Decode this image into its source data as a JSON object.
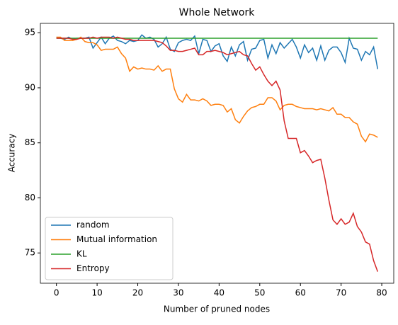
{
  "chart_data": {
    "type": "line",
    "title": "Whole Network",
    "xlabel": "Number of pruned nodes",
    "ylabel": "Accuracy",
    "x": [
      0,
      1,
      2,
      3,
      4,
      5,
      6,
      7,
      8,
      9,
      10,
      11,
      12,
      13,
      14,
      15,
      16,
      17,
      18,
      19,
      20,
      21,
      22,
      23,
      24,
      25,
      26,
      27,
      28,
      29,
      30,
      31,
      32,
      33,
      34,
      35,
      36,
      37,
      38,
      39,
      40,
      41,
      42,
      43,
      44,
      45,
      46,
      47,
      48,
      49,
      50,
      51,
      52,
      53,
      54,
      55,
      56,
      57,
      58,
      59,
      60,
      61,
      62,
      63,
      64,
      65,
      66,
      67,
      68,
      69,
      70,
      71,
      72,
      73,
      74,
      75,
      76,
      77,
      78,
      79
    ],
    "series": [
      {
        "name": "random",
        "color": "#1f77b4",
        "values": [
          94.6,
          94.5,
          94.4,
          94.6,
          94.4,
          94.5,
          94.5,
          94.5,
          94.6,
          93.6,
          94.1,
          94.6,
          94.0,
          94.5,
          94.7,
          94.3,
          94.2,
          94.0,
          94.3,
          94.2,
          94.3,
          94.8,
          94.5,
          94.6,
          94.4,
          93.7,
          94.0,
          94.6,
          93.5,
          93.3,
          94.1,
          94.3,
          94.4,
          94.3,
          94.7,
          93.1,
          94.4,
          94.3,
          93.3,
          93.8,
          94.0,
          92.9,
          92.4,
          93.7,
          92.9,
          93.9,
          94.2,
          92.5,
          93.5,
          93.6,
          94.3,
          94.4,
          92.7,
          93.9,
          93.1,
          94.1,
          93.6,
          94.0,
          94.4,
          93.7,
          92.7,
          93.9,
          93.2,
          93.6,
          92.5,
          93.8,
          92.5,
          93.4,
          93.7,
          93.7,
          93.2,
          92.3,
          94.5,
          93.6,
          93.5,
          92.5,
          93.3,
          93.0,
          93.7,
          91.7
        ]
      },
      {
        "name": "Mutual information",
        "color": "#ff7f0e",
        "values": [
          94.6,
          94.6,
          94.3,
          94.3,
          94.3,
          94.4,
          94.6,
          94.2,
          94.1,
          94.1,
          93.9,
          93.4,
          93.5,
          93.5,
          93.5,
          93.7,
          93.1,
          92.7,
          91.5,
          91.9,
          91.7,
          91.8,
          91.7,
          91.7,
          91.6,
          92.0,
          91.5,
          91.7,
          91.7,
          89.9,
          89.0,
          88.7,
          89.4,
          88.9,
          88.9,
          88.8,
          89.0,
          88.8,
          88.4,
          88.5,
          88.5,
          88.4,
          87.8,
          88.1,
          87.1,
          86.8,
          87.4,
          87.9,
          88.2,
          88.3,
          88.5,
          88.5,
          89.1,
          89.1,
          88.8,
          88.0,
          88.4,
          88.5,
          88.5,
          88.3,
          88.2,
          88.1,
          88.1,
          88.1,
          88.0,
          88.1,
          88.0,
          87.9,
          88.2,
          87.6,
          87.6,
          87.3,
          87.3,
          86.9,
          86.7,
          85.6,
          85.1,
          85.8,
          85.7,
          85.5
        ]
      },
      {
        "name": "KL",
        "color": "#2ca02c",
        "values": [
          94.5,
          94.5,
          94.5,
          94.5,
          94.5,
          94.5,
          94.5,
          94.5,
          94.5,
          94.5,
          94.5,
          94.5,
          94.5,
          94.5,
          94.5,
          94.5,
          94.5,
          94.5,
          94.5,
          94.5,
          94.5,
          94.5,
          94.5,
          94.5,
          94.5,
          94.5,
          94.5,
          94.5,
          94.5,
          94.5,
          94.5,
          94.5,
          94.5,
          94.5,
          94.5,
          94.5,
          94.5,
          94.5,
          94.5,
          94.5,
          94.5,
          94.5,
          94.5,
          94.5,
          94.5,
          94.5,
          94.5,
          94.5,
          94.5,
          94.5,
          94.5,
          94.5,
          94.5,
          94.5,
          94.5,
          94.5,
          94.5,
          94.5,
          94.5,
          94.5,
          94.5,
          94.5,
          94.5,
          94.5,
          94.5,
          94.5,
          94.5,
          94.5,
          94.5,
          94.5,
          94.5,
          94.5,
          94.5,
          94.5,
          94.5,
          94.5,
          94.5,
          94.5,
          94.5,
          94.5
        ]
      },
      {
        "name": "Entropy",
        "color": "#d62728",
        "values": [
          94.5,
          94.5,
          94.5,
          94.5,
          94.4,
          94.4,
          94.5,
          94.5,
          94.5,
          94.6,
          94.5,
          94.6,
          94.6,
          94.6,
          94.5,
          94.6,
          94.5,
          94.4,
          94.4,
          94.3,
          94.3,
          94.3,
          94.3,
          94.3,
          94.3,
          94.2,
          94.1,
          93.8,
          93.4,
          93.4,
          93.3,
          93.3,
          93.4,
          93.5,
          93.6,
          93.0,
          93.0,
          93.3,
          93.3,
          93.4,
          93.3,
          93.2,
          93.0,
          93.1,
          93.2,
          93.3,
          93.0,
          92.9,
          92.2,
          91.6,
          91.9,
          91.2,
          90.6,
          90.2,
          90.6,
          89.8,
          87.0,
          85.4,
          85.4,
          85.4,
          84.1,
          84.3,
          83.8,
          83.2,
          83.4,
          83.5,
          81.8,
          79.8,
          78.0,
          77.6,
          78.1,
          77.6,
          77.8,
          78.6,
          77.4,
          76.9,
          76.0,
          75.8,
          74.3,
          73.3
        ]
      }
    ],
    "xlim": [
      -3.95,
      82.95
    ],
    "xticks": [
      0,
      10,
      20,
      30,
      40,
      50,
      60,
      70,
      80
    ],
    "ylim": [
      72.25,
      95.85
    ],
    "yticks": [
      75,
      80,
      85,
      90,
      95
    ],
    "legend": "lower left"
  }
}
